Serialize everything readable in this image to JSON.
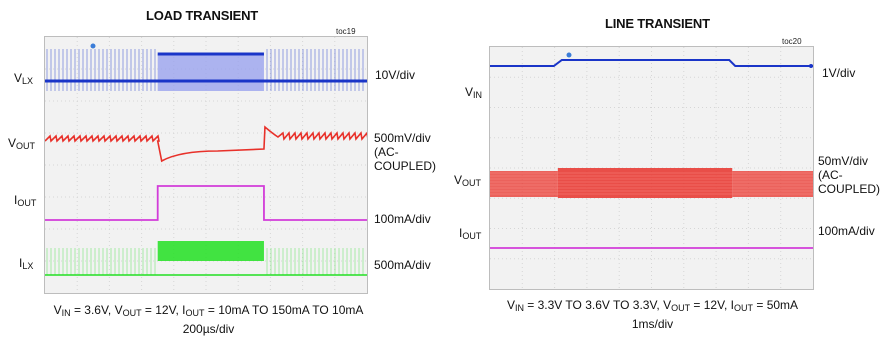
{
  "chart_data": [
    {
      "type": "line",
      "title": "LOAD TRANSIENT",
      "figure_id": "toc19",
      "channels": [
        {
          "name": "V_LX",
          "base": "V",
          "sub": "LX",
          "scale": "10V/div",
          "color": "#1a35c8"
        },
        {
          "name": "V_OUT",
          "base": "V",
          "sub": "OUT",
          "scale": "500mV/div\n(AC-\nCOUPLED)",
          "color": "#e8312a"
        },
        {
          "name": "I_OUT",
          "base": "I",
          "sub": "OUT",
          "scale": "100mA/div",
          "color": "#d23cd9"
        },
        {
          "name": "I_LX",
          "base": "I",
          "sub": "LX",
          "scale": "500mA/div",
          "color": "#22e022"
        }
      ],
      "conditions": {
        "line1": [
          [
            "V",
            "IN",
            " = 3.6V, "
          ],
          [
            "V",
            "OUT",
            " = 12V, "
          ],
          [
            "I",
            "OUT",
            " = 10mA TO 150mA TO 10mA"
          ]
        ],
        "timebase": "200µs/div"
      },
      "events": {
        "load_step_up_div": 3.5,
        "load_step_down_div": 6.8
      },
      "load_current_mA": [
        10,
        150,
        10
      ]
    },
    {
      "type": "line",
      "title": "LINE TRANSIENT",
      "figure_id": "toc20",
      "channels": [
        {
          "name": "V_IN",
          "base": "V",
          "sub": "IN",
          "scale": "1V/div",
          "color": "#1a35c8"
        },
        {
          "name": "V_OUT",
          "base": "V",
          "sub": "OUT",
          "scale": "50mV/div\n(AC-\nCOUPLED)",
          "color": "#e8312a"
        },
        {
          "name": "I_OUT",
          "base": "I",
          "sub": "OUT",
          "scale": "100mA/div",
          "color": "#d23cd9"
        }
      ],
      "conditions": {
        "line1": [
          [
            "V",
            "IN",
            " = 3.3V TO 3.6V TO 3.3V, "
          ],
          [
            "V",
            "OUT",
            " = 12V, "
          ],
          [
            "I",
            "OUT",
            " = 50mA"
          ]
        ],
        "timebase": "1ms/div"
      },
      "events": {
        "line_step_up_div": 2.1,
        "line_step_down_div": 7.5
      },
      "input_voltage_V": [
        3.3,
        3.6,
        3.3
      ]
    }
  ]
}
